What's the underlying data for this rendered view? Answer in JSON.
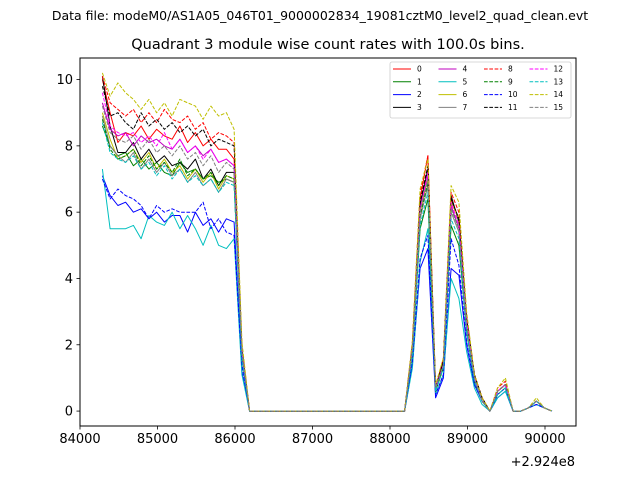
{
  "figure": {
    "suptitle": "Data file: modeM0/AS1A05_046T01_9000002834_19081cztM0_level2_quad_clean.evt",
    "xaxis_offset_label": "+2.924e8"
  },
  "chart_data": {
    "type": "line",
    "title": "Quadrant 3 module wise count rates with 100.0s bins.",
    "xlabel": "",
    "ylabel": "",
    "xlim": [
      84000,
      90400
    ],
    "ylim": [
      -0.45,
      10.65
    ],
    "xticks": [
      84000,
      85000,
      86000,
      87000,
      88000,
      89000,
      90000
    ],
    "xtick_labels": [
      "84000",
      "85000",
      "86000",
      "87000",
      "88000",
      "89000",
      "90000"
    ],
    "yticks": [
      0,
      2,
      4,
      6,
      8,
      10
    ],
    "ytick_labels": [
      "0",
      "2",
      "4",
      "6",
      "8",
      "10"
    ],
    "legend_position": "top-right",
    "x": [
      84289,
      84389,
      84489,
      84589,
      84689,
      84789,
      84889,
      84989,
      85089,
      85189,
      85289,
      85389,
      85489,
      85589,
      85689,
      85789,
      85889,
      85989,
      86089,
      86189,
      86289,
      86389,
      86489,
      86589,
      86689,
      86789,
      86889,
      86989,
      87089,
      87189,
      87289,
      87389,
      87489,
      87589,
      87689,
      87789,
      87889,
      87989,
      88089,
      88189,
      88289,
      88389,
      88489,
      88589,
      88689,
      88789,
      88889,
      88989,
      89089,
      89189,
      89289,
      89389,
      89489,
      89589,
      89689,
      89789,
      89889,
      89989,
      90089
    ],
    "series": [
      {
        "name": "0",
        "color": "#ff0000",
        "style": "solid",
        "values": [
          10.0,
          9.0,
          8.1,
          8.4,
          8.3,
          8.6,
          8.2,
          8.5,
          8.3,
          8.2,
          8.6,
          8.1,
          8.4,
          8.0,
          8.2,
          7.9,
          7.9,
          7.6,
          1.9,
          0.0,
          0.0,
          0.0,
          0.0,
          0.0,
          0.0,
          0.0,
          0.0,
          0.0,
          0.0,
          0.0,
          0.0,
          0.0,
          0.0,
          0.0,
          0.0,
          0.0,
          0.0,
          0.0,
          0.0,
          0.0,
          2.0,
          6.4,
          7.7,
          0.7,
          1.5,
          6.4,
          5.8,
          2.8,
          1.1,
          0.4,
          0.0,
          0.6,
          0.8,
          0.0,
          0.0,
          0.1,
          0.3,
          0.1,
          0.0
        ]
      },
      {
        "name": "1",
        "color": "#008000",
        "style": "solid",
        "values": [
          8.6,
          8.0,
          7.7,
          7.8,
          7.4,
          7.6,
          7.3,
          7.5,
          7.2,
          7.1,
          7.5,
          7.2,
          7.3,
          7.0,
          7.1,
          6.9,
          7.0,
          6.9,
          1.6,
          0.0,
          0.0,
          0.0,
          0.0,
          0.0,
          0.0,
          0.0,
          0.0,
          0.0,
          0.0,
          0.0,
          0.0,
          0.0,
          0.0,
          0.0,
          0.0,
          0.0,
          0.0,
          0.0,
          0.0,
          0.0,
          1.7,
          5.5,
          6.4,
          0.6,
          1.3,
          5.6,
          5.0,
          2.4,
          0.9,
          0.3,
          0.0,
          0.5,
          0.7,
          0.0,
          0.0,
          0.1,
          0.3,
          0.1,
          0.0
        ]
      },
      {
        "name": "2",
        "color": "#0000ff",
        "style": "solid",
        "values": [
          7.1,
          6.5,
          6.2,
          6.3,
          6.0,
          6.1,
          5.8,
          6.0,
          5.7,
          5.9,
          5.9,
          5.4,
          6.0,
          5.6,
          5.8,
          5.4,
          5.8,
          5.7,
          1.2,
          0.0,
          0.0,
          0.0,
          0.0,
          0.0,
          0.0,
          0.0,
          0.0,
          0.0,
          0.0,
          0.0,
          0.0,
          0.0,
          0.0,
          0.0,
          0.0,
          0.0,
          0.0,
          0.0,
          0.0,
          0.0,
          1.4,
          4.3,
          4.9,
          0.4,
          1.0,
          4.3,
          4.1,
          2.0,
          0.8,
          0.3,
          0.0,
          0.4,
          0.6,
          0.0,
          0.0,
          0.1,
          0.2,
          0.1,
          0.0
        ]
      },
      {
        "name": "3",
        "color": "#000000",
        "style": "solid",
        "values": [
          10.1,
          8.6,
          7.8,
          7.8,
          8.1,
          7.6,
          7.9,
          7.5,
          7.7,
          7.4,
          7.5,
          7.3,
          7.6,
          7.0,
          7.3,
          6.8,
          7.2,
          7.2,
          1.8,
          0.0,
          0.0,
          0.0,
          0.0,
          0.0,
          0.0,
          0.0,
          0.0,
          0.0,
          0.0,
          0.0,
          0.0,
          0.0,
          0.0,
          0.0,
          0.0,
          0.0,
          0.0,
          0.0,
          0.0,
          0.0,
          1.9,
          6.2,
          7.3,
          0.7,
          1.5,
          6.5,
          5.7,
          2.7,
          1.0,
          0.3,
          0.0,
          0.6,
          0.8,
          0.0,
          0.0,
          0.1,
          0.3,
          0.1,
          0.0
        ]
      },
      {
        "name": "4",
        "color": "#bf00bf",
        "style": "solid",
        "values": [
          9.3,
          8.5,
          8.3,
          8.4,
          8.0,
          8.3,
          8.1,
          8.2,
          8.0,
          7.9,
          8.2,
          7.8,
          8.0,
          7.7,
          7.9,
          7.5,
          7.6,
          7.4,
          1.8,
          0.0,
          0.0,
          0.0,
          0.0,
          0.0,
          0.0,
          0.0,
          0.0,
          0.0,
          0.0,
          0.0,
          0.0,
          0.0,
          0.0,
          0.0,
          0.0,
          0.0,
          0.0,
          0.0,
          0.0,
          0.0,
          1.9,
          6.0,
          7.1,
          0.7,
          1.4,
          6.2,
          5.5,
          2.6,
          1.0,
          0.3,
          0.0,
          0.6,
          0.8,
          0.0,
          0.0,
          0.1,
          0.3,
          0.1,
          0.0
        ]
      },
      {
        "name": "5",
        "color": "#00bfbf",
        "style": "solid",
        "values": [
          7.3,
          5.5,
          5.5,
          5.5,
          5.6,
          5.2,
          5.9,
          5.7,
          5.6,
          6.0,
          5.5,
          5.9,
          5.5,
          5.0,
          5.6,
          5.0,
          4.9,
          5.2,
          1.1,
          0.0,
          0.0,
          0.0,
          0.0,
          0.0,
          0.0,
          0.0,
          0.0,
          0.0,
          0.0,
          0.0,
          0.0,
          0.0,
          0.0,
          0.0,
          0.0,
          0.0,
          0.0,
          0.0,
          0.0,
          0.0,
          1.3,
          4.5,
          5.5,
          0.5,
          1.1,
          4.0,
          3.4,
          1.8,
          0.7,
          0.2,
          0.0,
          0.4,
          0.6,
          0.0,
          0.0,
          0.1,
          0.2,
          0.1,
          0.0
        ]
      },
      {
        "name": "6",
        "color": "#bfbf00",
        "style": "solid",
        "values": [
          9.0,
          8.2,
          7.6,
          7.7,
          7.9,
          7.5,
          7.8,
          7.3,
          7.6,
          7.2,
          7.4,
          7.0,
          7.3,
          6.9,
          7.2,
          6.7,
          7.1,
          7.0,
          1.7,
          0.0,
          0.0,
          0.0,
          0.0,
          0.0,
          0.0,
          0.0,
          0.0,
          0.0,
          0.0,
          0.0,
          0.0,
          0.0,
          0.0,
          0.0,
          0.0,
          0.0,
          0.0,
          0.0,
          0.0,
          0.0,
          1.8,
          6.0,
          7.0,
          0.7,
          1.4,
          6.3,
          5.8,
          2.6,
          1.0,
          0.3,
          0.0,
          0.6,
          0.8,
          0.0,
          0.0,
          0.1,
          0.3,
          0.1,
          0.0
        ]
      },
      {
        "name": "7",
        "color": "#808080",
        "style": "solid",
        "values": [
          8.9,
          8.0,
          7.7,
          7.5,
          7.8,
          7.3,
          7.6,
          7.2,
          7.5,
          7.1,
          7.3,
          6.9,
          7.2,
          6.8,
          7.0,
          6.6,
          7.0,
          6.9,
          1.7,
          0.0,
          0.0,
          0.0,
          0.0,
          0.0,
          0.0,
          0.0,
          0.0,
          0.0,
          0.0,
          0.0,
          0.0,
          0.0,
          0.0,
          0.0,
          0.0,
          0.0,
          0.0,
          0.0,
          0.0,
          0.0,
          1.8,
          5.8,
          6.8,
          0.6,
          1.4,
          6.0,
          5.4,
          2.5,
          1.0,
          0.3,
          0.0,
          0.6,
          0.8,
          0.0,
          0.0,
          0.1,
          0.3,
          0.1,
          0.0
        ]
      },
      {
        "name": "8",
        "color": "#ff0000",
        "style": "dashed",
        "values": [
          10.1,
          9.3,
          9.1,
          8.9,
          9.1,
          8.7,
          9.0,
          8.7,
          9.1,
          8.8,
          8.7,
          8.9,
          8.5,
          8.7,
          8.2,
          8.4,
          8.3,
          8.1,
          2.0,
          0.0,
          0.0,
          0.0,
          0.0,
          0.0,
          0.0,
          0.0,
          0.0,
          0.0,
          0.0,
          0.0,
          0.0,
          0.0,
          0.0,
          0.0,
          0.0,
          0.0,
          0.0,
          0.0,
          0.0,
          0.0,
          2.1,
          6.6,
          7.7,
          0.7,
          1.6,
          6.6,
          6.0,
          2.9,
          1.1,
          0.4,
          0.0,
          0.7,
          0.9,
          0.0,
          0.0,
          0.1,
          0.3,
          0.1,
          0.0
        ]
      },
      {
        "name": "9",
        "color": "#008000",
        "style": "dashed",
        "values": [
          8.8,
          7.9,
          7.6,
          7.7,
          7.9,
          7.4,
          7.7,
          7.3,
          7.5,
          7.2,
          7.6,
          7.1,
          7.3,
          7.0,
          7.2,
          6.8,
          7.1,
          7.0,
          1.7,
          0.0,
          0.0,
          0.0,
          0.0,
          0.0,
          0.0,
          0.0,
          0.0,
          0.0,
          0.0,
          0.0,
          0.0,
          0.0,
          0.0,
          0.0,
          0.0,
          0.0,
          0.0,
          0.0,
          0.0,
          0.0,
          1.8,
          5.9,
          6.9,
          0.6,
          1.4,
          6.1,
          5.5,
          2.6,
          1.0,
          0.3,
          0.0,
          0.6,
          0.8,
          0.0,
          0.0,
          0.1,
          0.3,
          0.1,
          0.0
        ]
      },
      {
        "name": "10",
        "color": "#0000ff",
        "style": "dashed",
        "values": [
          7.0,
          6.4,
          6.7,
          6.5,
          6.4,
          6.2,
          5.8,
          6.2,
          6.0,
          6.1,
          6.0,
          6.0,
          6.0,
          6.3,
          5.5,
          5.8,
          5.4,
          5.3,
          1.4,
          0.0,
          0.0,
          0.0,
          0.0,
          0.0,
          0.0,
          0.0,
          0.0,
          0.0,
          0.0,
          0.0,
          0.0,
          0.0,
          0.0,
          0.0,
          0.0,
          0.0,
          0.0,
          0.0,
          0.0,
          0.0,
          1.5,
          4.6,
          5.3,
          0.5,
          1.1,
          5.2,
          4.4,
          2.1,
          0.8,
          0.3,
          0.0,
          0.5,
          0.7,
          0.0,
          0.0,
          0.1,
          0.2,
          0.1,
          0.0
        ]
      },
      {
        "name": "11",
        "color": "#000000",
        "style": "dashed",
        "values": [
          9.8,
          8.9,
          9.0,
          8.7,
          8.5,
          9.0,
          8.6,
          8.8,
          8.5,
          8.7,
          8.4,
          8.6,
          8.3,
          8.5,
          8.0,
          8.2,
          8.1,
          8.0,
          1.9,
          0.0,
          0.0,
          0.0,
          0.0,
          0.0,
          0.0,
          0.0,
          0.0,
          0.0,
          0.0,
          0.0,
          0.0,
          0.0,
          0.0,
          0.0,
          0.0,
          0.0,
          0.0,
          0.0,
          0.0,
          0.0,
          2.0,
          6.3,
          7.4,
          0.7,
          1.5,
          6.4,
          5.8,
          2.8,
          1.1,
          0.4,
          0.0,
          0.6,
          0.8,
          0.0,
          0.0,
          0.1,
          0.3,
          0.1,
          0.0
        ]
      },
      {
        "name": "12",
        "color": "#ff00ff",
        "style": "dashed",
        "values": [
          9.6,
          8.6,
          8.4,
          8.3,
          8.4,
          8.1,
          8.3,
          8.0,
          8.4,
          7.9,
          8.2,
          7.8,
          8.0,
          7.6,
          7.9,
          7.5,
          7.6,
          7.4,
          1.8,
          0.0,
          0.0,
          0.0,
          0.0,
          0.0,
          0.0,
          0.0,
          0.0,
          0.0,
          0.0,
          0.0,
          0.0,
          0.0,
          0.0,
          0.0,
          0.0,
          0.0,
          0.0,
          0.0,
          0.0,
          0.0,
          1.9,
          6.1,
          7.2,
          0.7,
          1.4,
          6.3,
          5.6,
          2.7,
          1.0,
          0.3,
          0.0,
          0.6,
          0.8,
          0.0,
          0.0,
          0.1,
          0.3,
          0.1,
          0.0
        ]
      },
      {
        "name": "13",
        "color": "#00bfbf",
        "style": "dashed",
        "values": [
          8.7,
          7.8,
          7.6,
          7.5,
          7.7,
          7.3,
          7.5,
          7.1,
          7.4,
          7.0,
          7.3,
          6.9,
          7.1,
          6.8,
          7.0,
          6.6,
          6.9,
          6.8,
          1.6,
          0.0,
          0.0,
          0.0,
          0.0,
          0.0,
          0.0,
          0.0,
          0.0,
          0.0,
          0.0,
          0.0,
          0.0,
          0.0,
          0.0,
          0.0,
          0.0,
          0.0,
          0.0,
          0.0,
          0.0,
          0.0,
          1.7,
          5.6,
          6.6,
          0.6,
          1.3,
          5.8,
          5.2,
          2.4,
          0.9,
          0.3,
          0.0,
          0.5,
          0.7,
          0.0,
          0.0,
          0.1,
          0.3,
          0.1,
          0.0
        ]
      },
      {
        "name": "14",
        "color": "#bfbf00",
        "style": "dashed",
        "values": [
          10.2,
          9.5,
          9.9,
          9.6,
          9.4,
          9.1,
          9.4,
          9.0,
          9.3,
          8.9,
          9.4,
          9.3,
          9.2,
          8.8,
          9.2,
          8.9,
          9.0,
          8.5,
          2.1,
          0.0,
          0.0,
          0.0,
          0.0,
          0.0,
          0.0,
          0.0,
          0.0,
          0.0,
          0.0,
          0.0,
          0.0,
          0.0,
          0.0,
          0.0,
          0.0,
          0.0,
          0.0,
          0.0,
          0.0,
          0.0,
          2.1,
          6.7,
          7.6,
          0.8,
          1.6,
          6.8,
          6.3,
          3.0,
          1.1,
          0.4,
          0.0,
          0.7,
          1.0,
          0.0,
          0.0,
          0.1,
          0.4,
          0.1,
          0.0
        ]
      },
      {
        "name": "15",
        "color": "#808080",
        "style": "dashed",
        "values": [
          9.2,
          8.4,
          8.2,
          8.1,
          8.3,
          7.9,
          8.2,
          7.8,
          8.0,
          7.7,
          8.0,
          7.6,
          7.8,
          7.4,
          7.7,
          7.2,
          7.5,
          7.3,
          1.8,
          0.0,
          0.0,
          0.0,
          0.0,
          0.0,
          0.0,
          0.0,
          0.0,
          0.0,
          0.0,
          0.0,
          0.0,
          0.0,
          0.0,
          0.0,
          0.0,
          0.0,
          0.0,
          0.0,
          0.0,
          0.0,
          1.9,
          6.0,
          7.0,
          0.7,
          1.4,
          6.1,
          5.5,
          2.6,
          1.0,
          0.3,
          0.0,
          0.6,
          0.8,
          0.0,
          0.0,
          0.1,
          0.3,
          0.1,
          0.0
        ]
      }
    ]
  }
}
